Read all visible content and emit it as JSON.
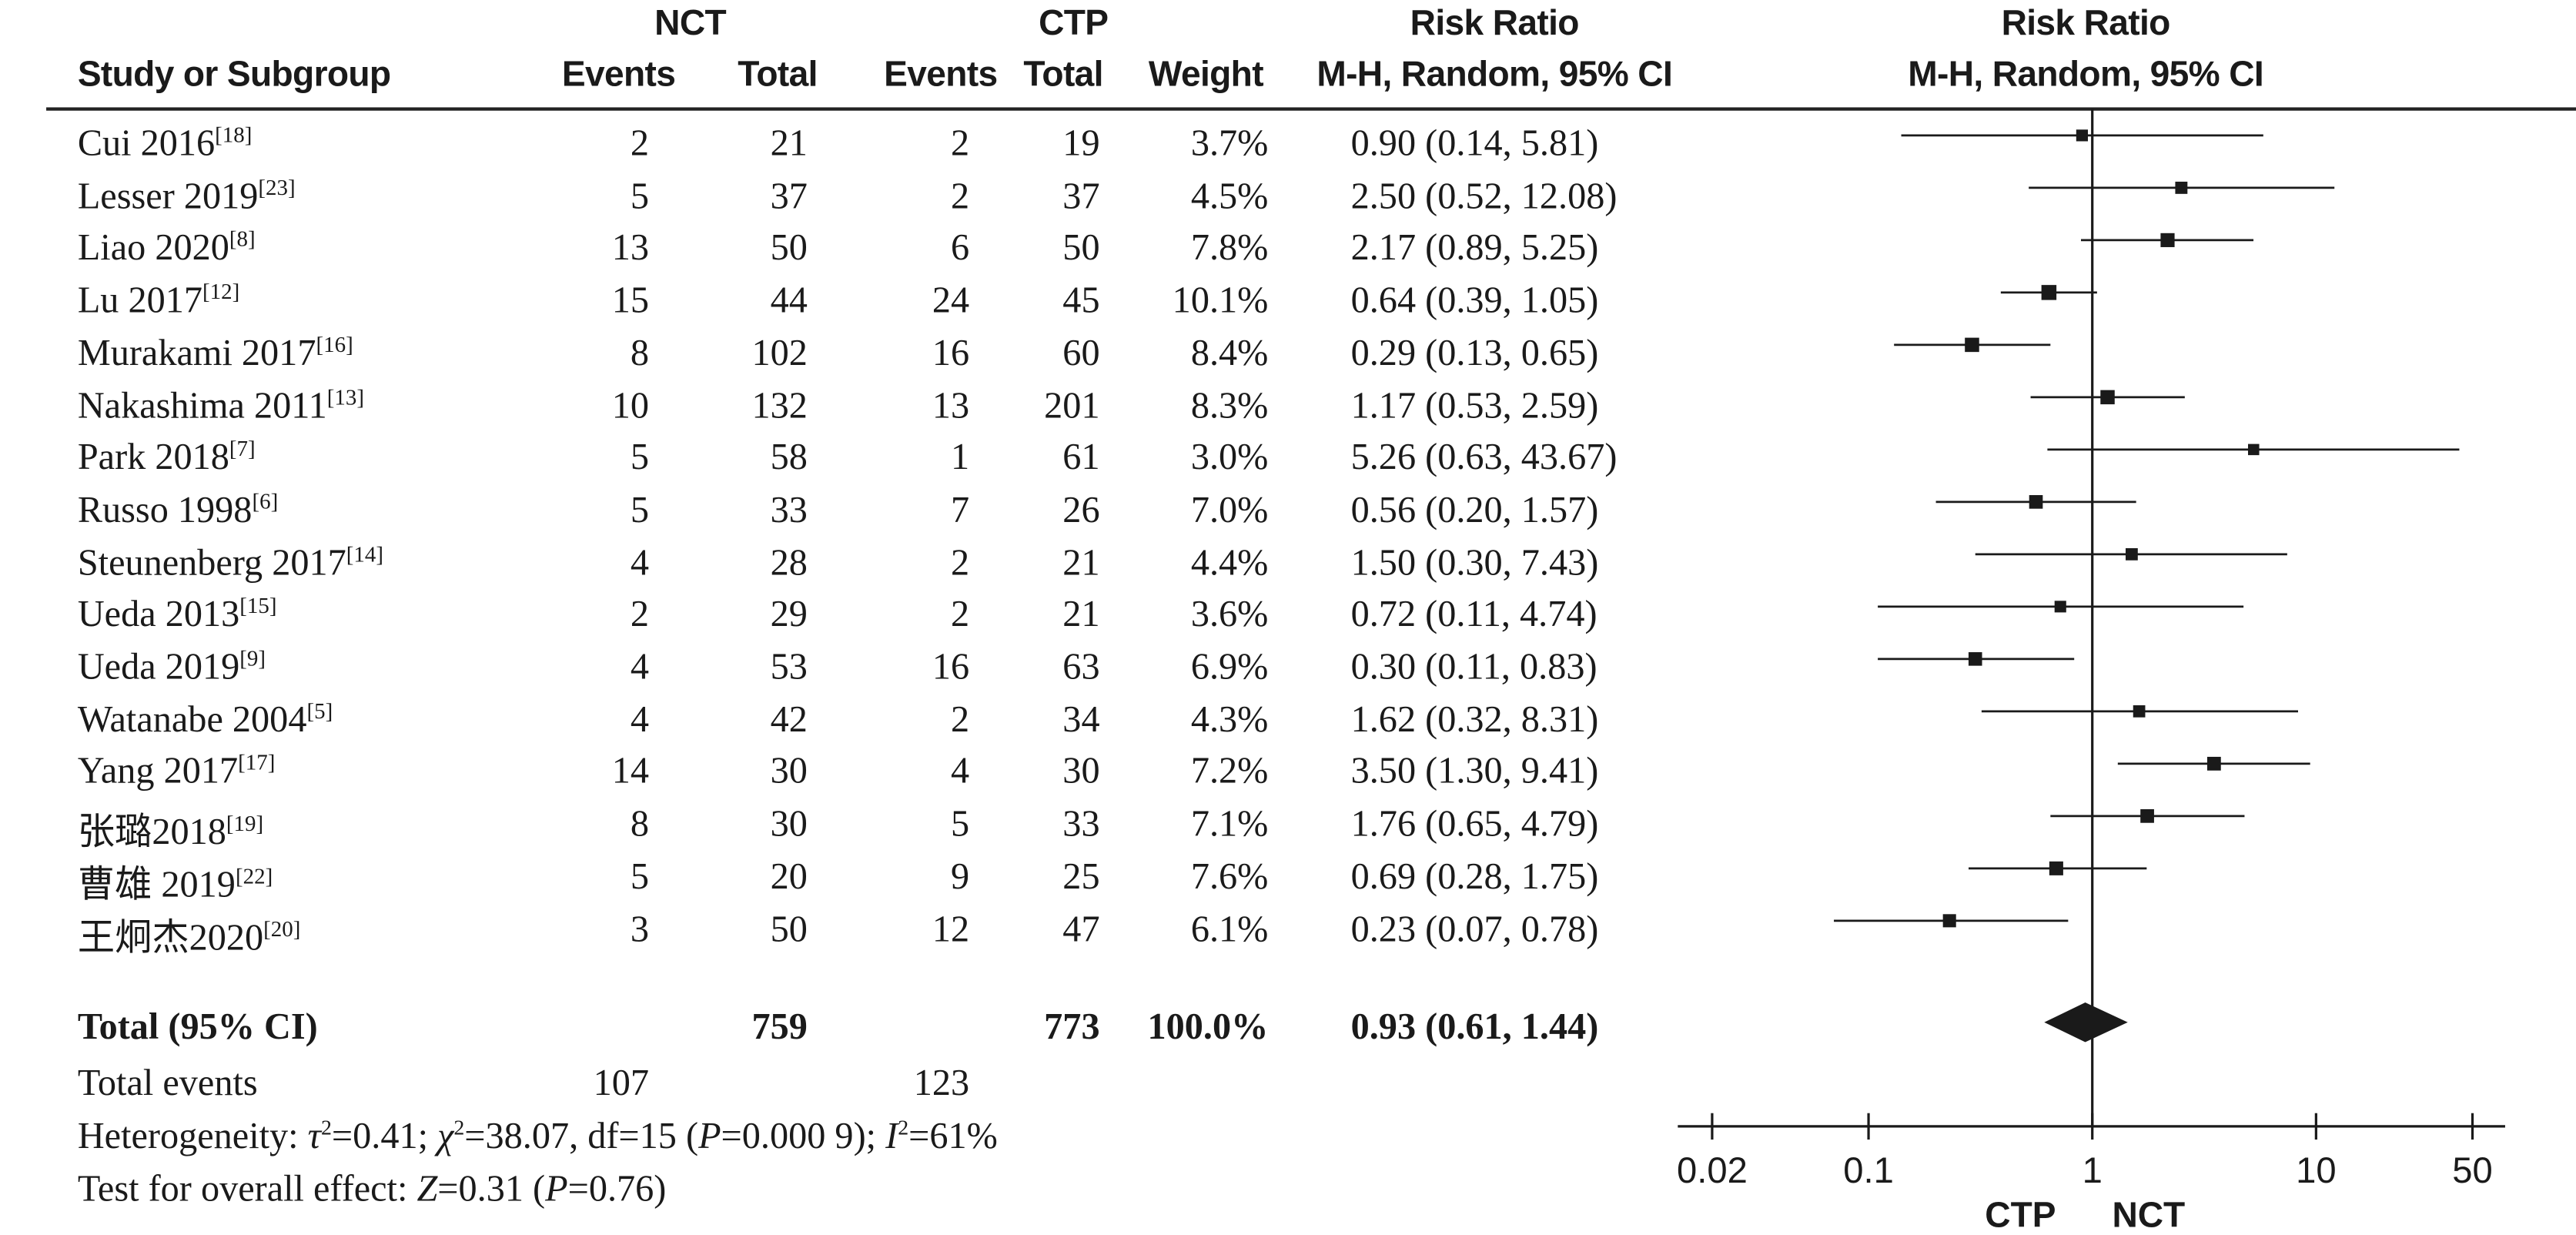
{
  "header": {
    "group1": "NCT",
    "group2": "CTP",
    "rr_title": "Risk Ratio",
    "rr_method": "M-H, Random, 95% CI",
    "plot_title": "Risk Ratio",
    "plot_method": "M-H, Random, 95% CI",
    "study_col": "Study or Subgroup",
    "events1": "Events",
    "total1": "Total",
    "events2": "Events",
    "total2": "Total",
    "weight": "Weight"
  },
  "studies": [
    {
      "name": "Cui 2016",
      "ref": "[18]",
      "e1": "2",
      "t1": "21",
      "e2": "2",
      "t2": "19",
      "weight": "3.7%",
      "ci_text": "0.90 (0.14, 5.81)"
    },
    {
      "name": "Lesser 2019",
      "ref": "[23]",
      "e1": "5",
      "t1": "37",
      "e2": "2",
      "t2": "37",
      "weight": "4.5%",
      "ci_text": "2.50 (0.52, 12.08)"
    },
    {
      "name": "Liao 2020",
      "ref": "[8]",
      "e1": "13",
      "t1": "50",
      "e2": "6",
      "t2": "50",
      "weight": "7.8%",
      "ci_text": "2.17 (0.89, 5.25)"
    },
    {
      "name": "Lu 2017",
      "ref": "[12]",
      "e1": "15",
      "t1": "44",
      "e2": "24",
      "t2": "45",
      "weight": "10.1%",
      "ci_text": "0.64 (0.39, 1.05)"
    },
    {
      "name": "Murakami 2017",
      "ref": "[16]",
      "e1": "8",
      "t1": "102",
      "e2": "16",
      "t2": "60",
      "weight": "8.4%",
      "ci_text": "0.29 (0.13, 0.65)"
    },
    {
      "name": "Nakashima 2011",
      "ref": "[13]",
      "e1": "10",
      "t1": "132",
      "e2": "13",
      "t2": "201",
      "weight": "8.3%",
      "ci_text": "1.17 (0.53, 2.59)"
    },
    {
      "name": "Park 2018",
      "ref": "[7]",
      "e1": "5",
      "t1": "58",
      "e2": "1",
      "t2": "61",
      "weight": "3.0%",
      "ci_text": "5.26 (0.63, 43.67)"
    },
    {
      "name": "Russo 1998",
      "ref": "[6]",
      "e1": "5",
      "t1": "33",
      "e2": "7",
      "t2": "26",
      "weight": "7.0%",
      "ci_text": "0.56 (0.20, 1.57)"
    },
    {
      "name": "Steunenberg 2017",
      "ref": "[14]",
      "e1": "4",
      "t1": "28",
      "e2": "2",
      "t2": "21",
      "weight": "4.4%",
      "ci_text": "1.50 (0.30, 7.43)"
    },
    {
      "name": "Ueda 2013",
      "ref": "[15]",
      "e1": "2",
      "t1": "29",
      "e2": "2",
      "t2": "21",
      "weight": "3.6%",
      "ci_text": "0.72 (0.11, 4.74)"
    },
    {
      "name": "Ueda 2019",
      "ref": "[9]",
      "e1": "4",
      "t1": "53",
      "e2": "16",
      "t2": "63",
      "weight": "6.9%",
      "ci_text": "0.30 (0.11, 0.83)"
    },
    {
      "name": "Watanabe 2004",
      "ref": "[5]",
      "e1": "4",
      "t1": "42",
      "e2": "2",
      "t2": "34",
      "weight": "4.3%",
      "ci_text": "1.62 (0.32, 8.31)"
    },
    {
      "name": "Yang 2017",
      "ref": "[17]",
      "e1": "14",
      "t1": "30",
      "e2": "4",
      "t2": "30",
      "weight": "7.2%",
      "ci_text": "3.50 (1.30, 9.41)"
    },
    {
      "name": "张璐2018",
      "ref": "[19]",
      "e1": "8",
      "t1": "30",
      "e2": "5",
      "t2": "33",
      "weight": "7.1%",
      "ci_text": "1.76 (0.65, 4.79)"
    },
    {
      "name": "曹雄 2019",
      "ref": "[22]",
      "e1": "5",
      "t1": "20",
      "e2": "9",
      "t2": "25",
      "weight": "7.6%",
      "ci_text": "0.69 (0.28, 1.75)"
    },
    {
      "name": "王炯杰2020",
      "ref": "[20]",
      "e1": "3",
      "t1": "50",
      "e2": "12",
      "t2": "47",
      "weight": "6.1%",
      "ci_text": "0.23 (0.07, 0.78)"
    }
  ],
  "total": {
    "label": "Total (95% CI)",
    "t1": "759",
    "t2": "773",
    "weight": "100.0%",
    "ci_text": "0.93 (0.61, 1.44)"
  },
  "total_events": {
    "label": "Total events",
    "e1": "107",
    "e2": "123"
  },
  "heterogeneity": {
    "label": "Heterogeneity:",
    "tau2_sym": "τ",
    "tau2_rest": "=0.41; ",
    "chi2_sym": "χ",
    "chi2_rest": "=38.07, df=15 (",
    "p_sym": "P",
    "p_rest": "=0.000 9); ",
    "i2_sym": "I",
    "i2_rest": "=61%"
  },
  "overall_effect": {
    "label": "Test for overall effect: ",
    "z_sym": "Z",
    "z_rest": "=0.31 (",
    "p_sym": "P",
    "p_rest": "=0.76)"
  },
  "axis": {
    "ticks": [
      0.02,
      0.1,
      1,
      10,
      50
    ],
    "tick_labels": [
      "0.02",
      "0.1",
      "1",
      "10",
      "50"
    ],
    "left_label": "CTP",
    "right_label": "NCT"
  },
  "colors": {
    "ink": "#1a1a1a",
    "diamond": "#1a1a1a"
  },
  "chart_data": {
    "type": "forest",
    "scale": "log",
    "xlim": [
      0.02,
      50
    ],
    "null_value": 1,
    "xlabel_left": "CTP",
    "xlabel_right": "NCT",
    "studies": [
      {
        "study": "Cui 2016",
        "rr": 0.9,
        "lo": 0.14,
        "hi": 5.81,
        "weight": 3.7
      },
      {
        "study": "Lesser 2019",
        "rr": 2.5,
        "lo": 0.52,
        "hi": 12.08,
        "weight": 4.5
      },
      {
        "study": "Liao 2020",
        "rr": 2.17,
        "lo": 0.89,
        "hi": 5.25,
        "weight": 7.8
      },
      {
        "study": "Lu 2017",
        "rr": 0.64,
        "lo": 0.39,
        "hi": 1.05,
        "weight": 10.1
      },
      {
        "study": "Murakami 2017",
        "rr": 0.29,
        "lo": 0.13,
        "hi": 0.65,
        "weight": 8.4
      },
      {
        "study": "Nakashima 2011",
        "rr": 1.17,
        "lo": 0.53,
        "hi": 2.59,
        "weight": 8.3
      },
      {
        "study": "Park 2018",
        "rr": 5.26,
        "lo": 0.63,
        "hi": 43.67,
        "weight": 3.0
      },
      {
        "study": "Russo 1998",
        "rr": 0.56,
        "lo": 0.2,
        "hi": 1.57,
        "weight": 7.0
      },
      {
        "study": "Steunenberg 2017",
        "rr": 1.5,
        "lo": 0.3,
        "hi": 7.43,
        "weight": 4.4
      },
      {
        "study": "Ueda 2013",
        "rr": 0.72,
        "lo": 0.11,
        "hi": 4.74,
        "weight": 3.6
      },
      {
        "study": "Ueda 2019",
        "rr": 0.3,
        "lo": 0.11,
        "hi": 0.83,
        "weight": 6.9
      },
      {
        "study": "Watanabe 2004",
        "rr": 1.62,
        "lo": 0.32,
        "hi": 8.31,
        "weight": 4.3
      },
      {
        "study": "Yang 2017",
        "rr": 3.5,
        "lo": 1.3,
        "hi": 9.41,
        "weight": 7.2
      },
      {
        "study": "张璐2018",
        "rr": 1.76,
        "lo": 0.65,
        "hi": 4.79,
        "weight": 7.1
      },
      {
        "study": "曹雄 2019",
        "rr": 0.69,
        "lo": 0.28,
        "hi": 1.75,
        "weight": 7.6
      },
      {
        "study": "王炯杰2020",
        "rr": 0.23,
        "lo": 0.07,
        "hi": 0.78,
        "weight": 6.1
      }
    ],
    "pooled": {
      "rr": 0.93,
      "lo": 0.61,
      "hi": 1.44,
      "weight": 100.0
    }
  }
}
